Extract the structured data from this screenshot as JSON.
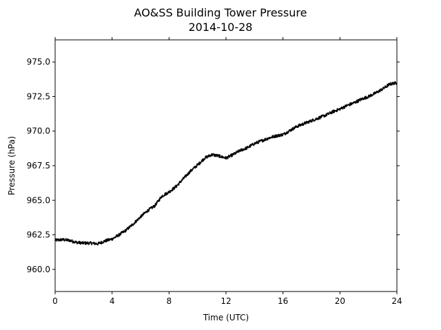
{
  "chart_data": {
    "type": "line",
    "title": "AO&SS Building Tower Pressure",
    "subtitle": "2014-10-28",
    "xlabel": "Time (UTC)",
    "ylabel": "Pressure (hPa)",
    "xlim": [
      0,
      24
    ],
    "ylim": [
      958.4,
      976.6
    ],
    "xticks": [
      0,
      4,
      8,
      12,
      16,
      20,
      24
    ],
    "xtick_labels": [
      "0",
      "4",
      "8",
      "12",
      "16",
      "20",
      "24"
    ],
    "yticks": [
      960.0,
      962.5,
      965.0,
      967.5,
      970.0,
      972.5,
      975.0
    ],
    "ytick_labels": [
      "960.0",
      "962.5",
      "965.0",
      "967.5",
      "970.0",
      "972.5",
      "975.0"
    ],
    "grid": false,
    "series": [
      {
        "color": "#000000",
        "x": [
          0,
          0.5,
          1,
          1.5,
          2,
          2.5,
          3,
          3.5,
          4,
          4.5,
          5,
          5.5,
          6,
          6.5,
          7,
          7.5,
          8,
          8.5,
          9,
          9.5,
          10,
          10.5,
          11,
          11.5,
          12,
          12.5,
          13,
          13.5,
          14,
          14.5,
          15,
          15.5,
          16,
          16.5,
          17,
          17.5,
          18,
          18.5,
          19,
          19.5,
          20,
          20.5,
          21,
          21.5,
          22,
          22.5,
          23,
          23.5,
          24
        ],
        "y": [
          962.1,
          962.15,
          962.1,
          961.95,
          961.9,
          961.9,
          961.85,
          962.05,
          962.2,
          962.5,
          962.85,
          963.3,
          963.8,
          964.25,
          964.6,
          965.3,
          965.6,
          966.0,
          966.55,
          967.1,
          967.55,
          968.05,
          968.3,
          968.2,
          968.05,
          968.3,
          968.6,
          968.8,
          969.1,
          969.3,
          969.5,
          969.65,
          969.75,
          970.05,
          970.35,
          970.55,
          970.75,
          970.95,
          971.15,
          971.4,
          971.6,
          971.85,
          972.05,
          972.3,
          972.5,
          972.75,
          973.05,
          973.4,
          973.5
        ]
      }
    ]
  }
}
